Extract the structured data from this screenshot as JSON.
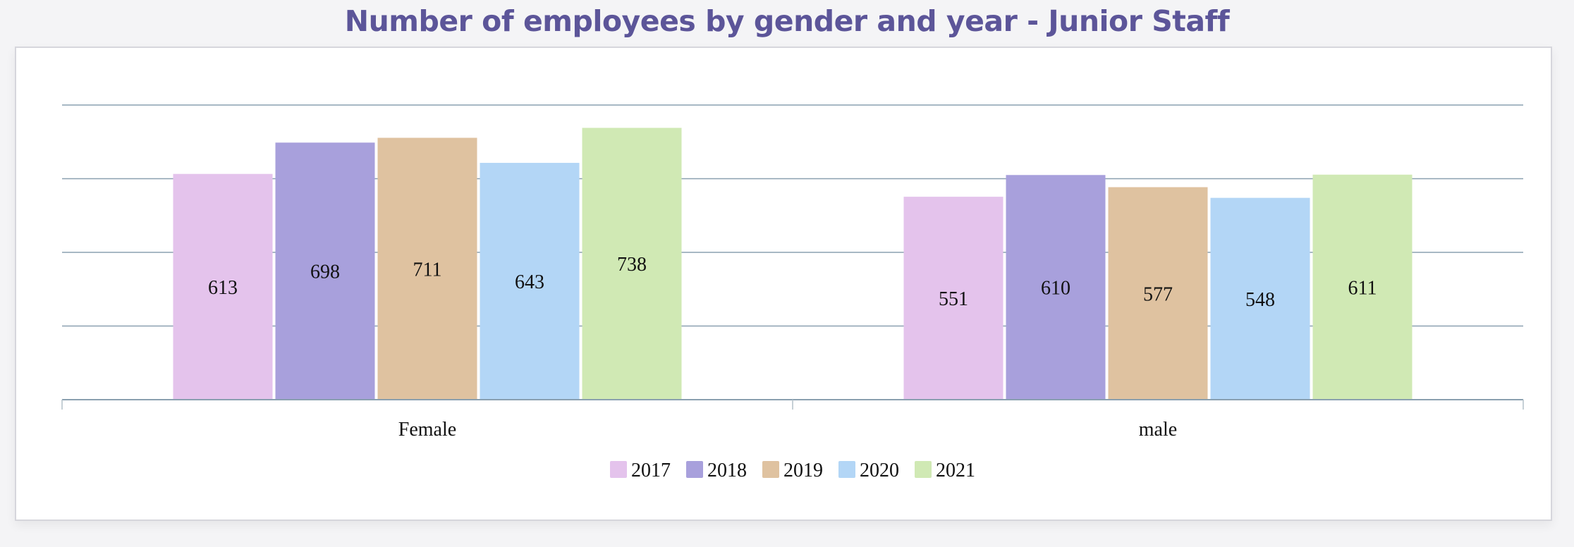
{
  "chart_data": {
    "type": "bar",
    "title": "Number of employees by gender and year - Junior Staff",
    "categories": [
      "Female",
      "male"
    ],
    "series": [
      {
        "name": "2017",
        "color": "#e4c3ec",
        "values": [
          613,
          551
        ]
      },
      {
        "name": "2018",
        "color": "#a8a0dc",
        "values": [
          698,
          610
        ]
      },
      {
        "name": "2019",
        "color": "#dfc2a0",
        "values": [
          711,
          577
        ]
      },
      {
        "name": "2020",
        "color": "#b3d6f6",
        "values": [
          643,
          548
        ]
      },
      {
        "name": "2021",
        "color": "#d0e9b4",
        "values": [
          738,
          611
        ]
      }
    ],
    "ylim": [
      0,
      800
    ],
    "y_tick_labels_visible": false,
    "grid": true,
    "legend": "bottom",
    "gridline_color": "#8aa0b0"
  }
}
